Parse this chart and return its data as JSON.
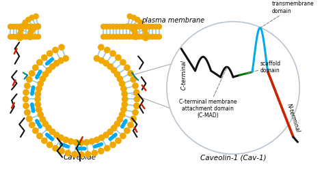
{
  "bg_color": "#ffffff",
  "title_left": "Caveolae",
  "title_right": "Caveolin-1 (Cav-1)",
  "plasma_membrane_label": "plasma membrane",
  "circle_edge_color": "#b8c4d0",
  "gold_color": "#F0A800",
  "blue_color": "#8EC8E8",
  "red_color": "#CC2200",
  "black_color": "#111111",
  "green_color": "#007700",
  "cyan_color": "#00AAEE",
  "annotation_transmembrane": "transmembrane\ndomain",
  "annotation_scaffold": "scaffold\ndomain",
  "annotation_cmad": "C-terminal membrane\nattachment domain\n(C-MAD)",
  "annotation_cterminal": "C-terminal",
  "annotation_nterminal": "N-terminal",
  "font_size_label": 7.5,
  "font_size_ann": 5.5
}
